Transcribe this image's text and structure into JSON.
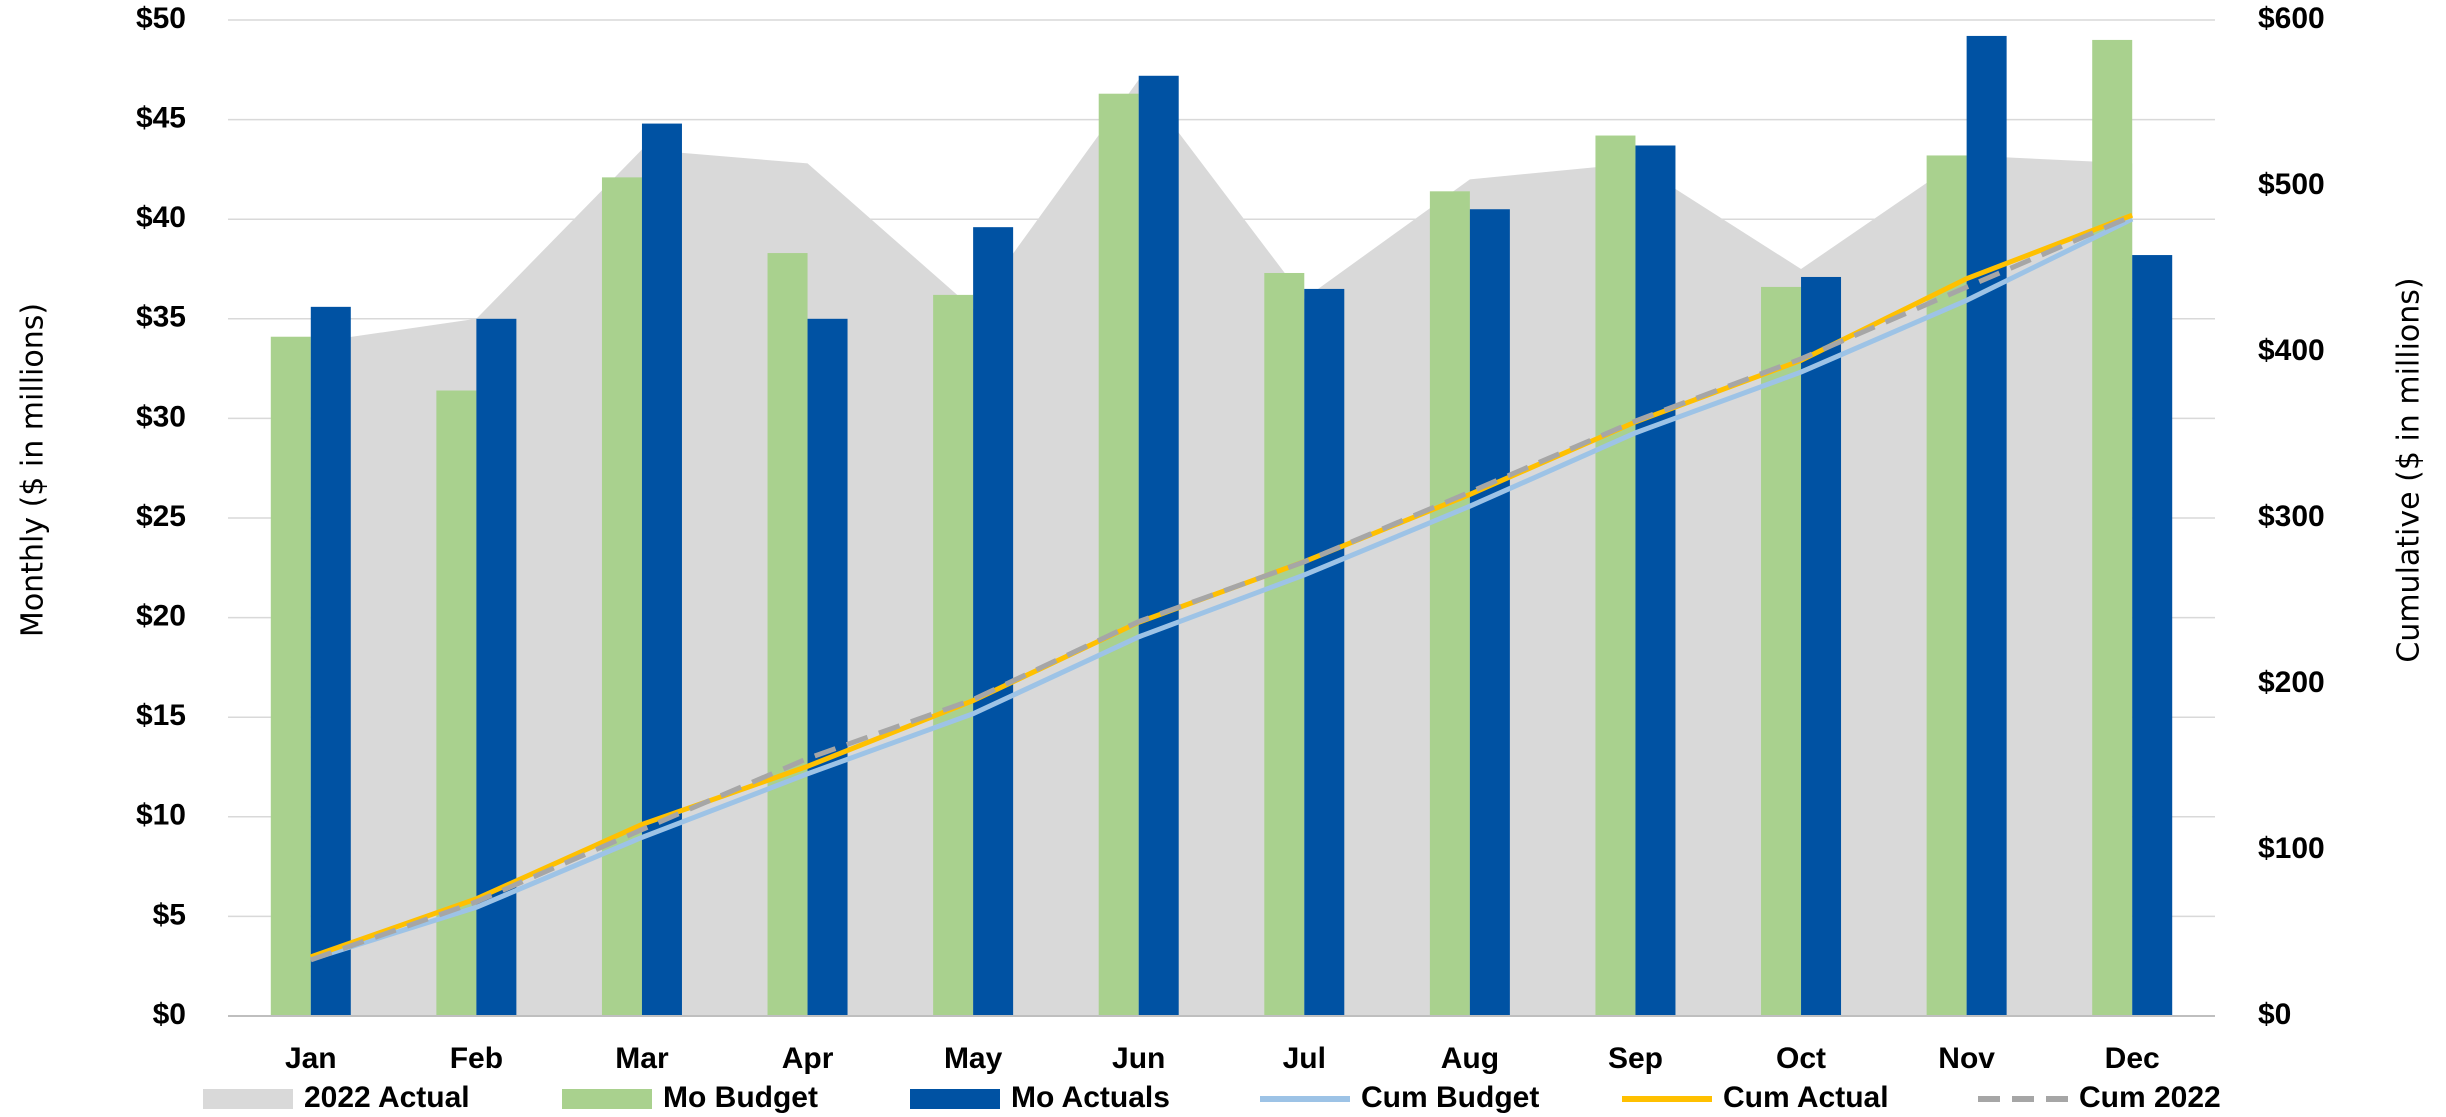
{
  "chart_data": {
    "type": "combo",
    "categories": [
      "Jan",
      "Feb",
      "Mar",
      "Apr",
      "May",
      "Jun",
      "Jul",
      "Aug",
      "Sep",
      "Oct",
      "Nov",
      "Dec"
    ],
    "y_label": "Monthly ($ in millions)",
    "y2_label": "Cumulative ($ in millions)",
    "ylim": [
      0,
      50
    ],
    "yticks": [
      {
        "value": 0,
        "label": "$0"
      },
      {
        "value": 5,
        "label": "$5"
      },
      {
        "value": 10,
        "label": "$10"
      },
      {
        "value": 15,
        "label": "$15"
      },
      {
        "value": 20,
        "label": "$20"
      },
      {
        "value": 25,
        "label": "$25"
      },
      {
        "value": 30,
        "label": "$30"
      },
      {
        "value": 35,
        "label": "$35"
      },
      {
        "value": 40,
        "label": "$40"
      },
      {
        "value": 45,
        "label": "$45"
      },
      {
        "value": 50,
        "label": "$50"
      }
    ],
    "y2lim": [
      0,
      600
    ],
    "y2ticks": [
      {
        "value": 0,
        "label": "$0"
      },
      {
        "value": 100,
        "label": "$100"
      },
      {
        "value": 200,
        "label": "$200"
      },
      {
        "value": 300,
        "label": "$300"
      },
      {
        "value": 400,
        "label": "$400"
      },
      {
        "value": 500,
        "label": "$500"
      },
      {
        "value": 600,
        "label": "$600"
      }
    ],
    "grid": true,
    "legend": "bottom",
    "series": [
      {
        "name": "2022 Actual",
        "kind": "area",
        "color": "#d9d9d9",
        "values": [
          33.8,
          35.0,
          43.5,
          42.8,
          35.5,
          47.0,
          36.0,
          42.0,
          42.8,
          37.5,
          43.2,
          42.8
        ]
      },
      {
        "name": "Mo Budget",
        "kind": "bar",
        "color": "#a9d18e",
        "values": [
          34.1,
          31.4,
          42.1,
          38.3,
          36.2,
          46.3,
          37.3,
          41.4,
          44.2,
          36.6,
          43.2,
          49.0
        ]
      },
      {
        "name": "Mo Actuals",
        "kind": "bar",
        "color": "#0052a3",
        "values": [
          35.6,
          35.0,
          44.8,
          35.0,
          39.6,
          47.2,
          36.5,
          40.5,
          43.7,
          37.1,
          49.2,
          38.2
        ]
      },
      {
        "name": "Cum Budget",
        "kind": "line",
        "axis": "y2",
        "color": "#9dc3e6",
        "values": [
          34.1,
          65.5,
          107.6,
          145.9,
          182.1,
          228.4,
          265.7,
          307.1,
          351.3,
          387.9,
          431.1,
          480.1
        ]
      },
      {
        "name": "Cum Actual",
        "kind": "line",
        "axis": "y2",
        "color": "#ffc000",
        "values": [
          35.6,
          70.6,
          115.4,
          150.4,
          190.0,
          237.2,
          273.7,
          314.2,
          357.9,
          395.0,
          444.2,
          482.4
        ]
      },
      {
        "name": "Cum 2022",
        "kind": "line",
        "axis": "y2",
        "dash": true,
        "color": "#a6a6a6",
        "values": [
          33.8,
          68.8,
          112.3,
          155.1,
          190.6,
          237.6,
          273.6,
          315.6,
          358.4,
          395.9,
          439.1,
          481.9
        ]
      }
    ]
  }
}
